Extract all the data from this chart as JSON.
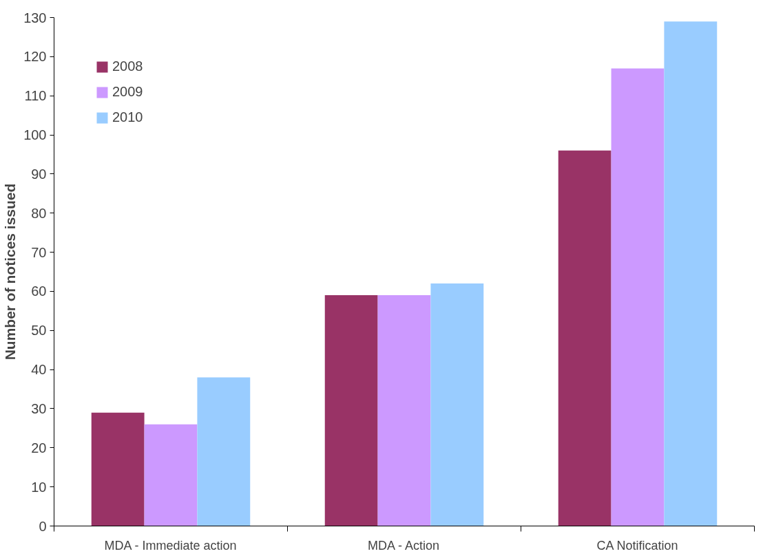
{
  "chart_data": {
    "type": "bar",
    "ylabel": "Number of notices issued",
    "categories": [
      "MDA - Immediate action",
      "MDA - Action",
      "CA Notification"
    ],
    "series": [
      {
        "name": "2008",
        "color": "#993366",
        "values": [
          29,
          59,
          96
        ]
      },
      {
        "name": "2009",
        "color": "#cc99ff",
        "values": [
          26,
          59,
          117
        ]
      },
      {
        "name": "2010",
        "color": "#99ccff",
        "values": [
          38,
          62,
          129
        ]
      }
    ],
    "ylim": [
      0,
      130
    ],
    "yticks": [
      0,
      10,
      20,
      30,
      40,
      50,
      60,
      70,
      80,
      90,
      100,
      110,
      120,
      130
    ],
    "grid": false,
    "legend": "top left"
  }
}
